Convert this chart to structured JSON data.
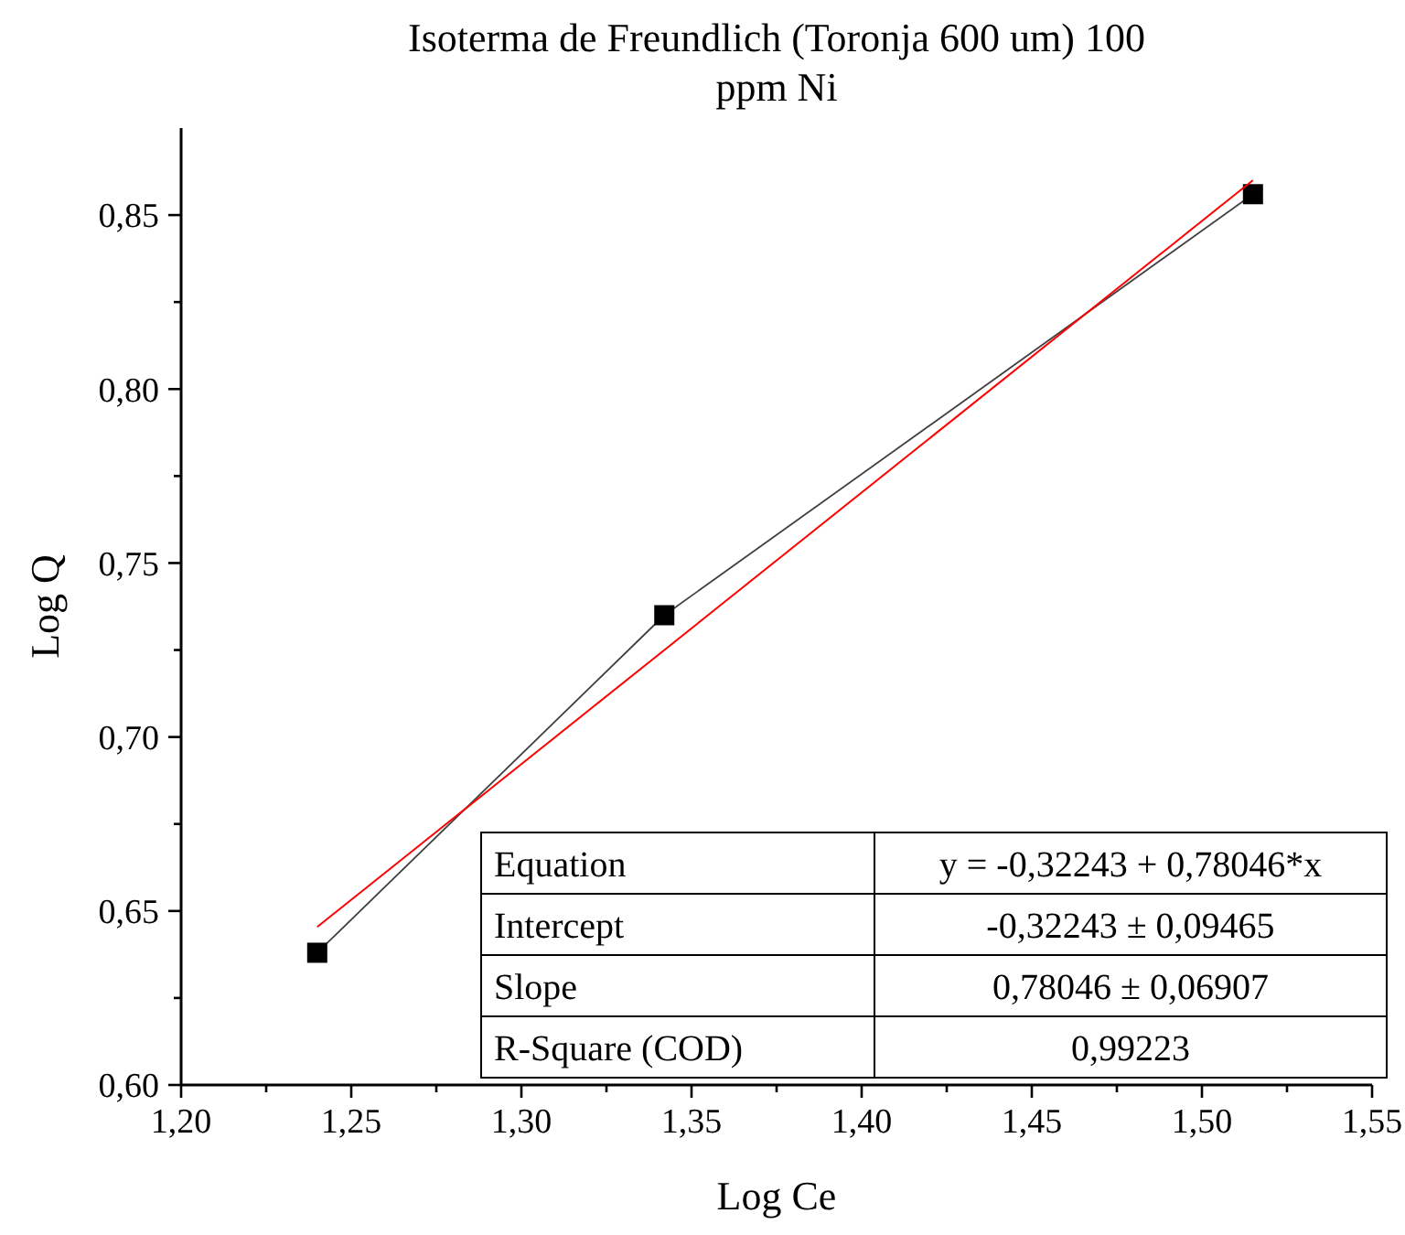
{
  "chart_data": {
    "type": "line",
    "title": "Isoterma de Freundlich (Toronja 600 um) 100 ppm Ni",
    "xlabel": "Log Ce",
    "ylabel": "Log Q",
    "series": [
      {
        "color": "#000000",
        "x": [
          1.24,
          1.342,
          1.515
        ],
        "values": [
          0.638,
          0.735,
          0.856
        ],
        "marker": "square"
      },
      {
        "color": "#ff0000",
        "x": [
          1.24,
          1.515
        ],
        "values": [
          0.6454,
          0.86
        ],
        "marker": "none"
      }
    ],
    "xlim": [
      1.2,
      1.55
    ],
    "xticks": [
      {
        "value": 1.2,
        "label": "1,20"
      },
      {
        "value": 1.225,
        "label": null
      },
      {
        "value": 1.25,
        "label": "1,25"
      },
      {
        "value": 1.275,
        "label": null
      },
      {
        "value": 1.3,
        "label": "1,30"
      },
      {
        "value": 1.325,
        "label": null
      },
      {
        "value": 1.35,
        "label": "1,35"
      },
      {
        "value": 1.375,
        "label": null
      },
      {
        "value": 1.4,
        "label": "1,40"
      },
      {
        "value": 1.425,
        "label": null
      },
      {
        "value": 1.45,
        "label": "1,45"
      },
      {
        "value": 1.475,
        "label": null
      },
      {
        "value": 1.5,
        "label": "1,50"
      },
      {
        "value": 1.525,
        "label": null
      },
      {
        "value": 1.55,
        "label": "1,55"
      }
    ],
    "ylim": [
      0.6,
      0.875
    ],
    "yticks": [
      {
        "value": 0.6,
        "label": "0,60"
      },
      {
        "value": 0.625,
        "label": null
      },
      {
        "value": 0.65,
        "label": "0,65"
      },
      {
        "value": 0.675,
        "label": null
      },
      {
        "value": 0.7,
        "label": "0,70"
      },
      {
        "value": 0.725,
        "label": null
      },
      {
        "value": 0.75,
        "label": "0,75"
      },
      {
        "value": 0.775,
        "label": null
      },
      {
        "value": 0.8,
        "label": "0,80"
      },
      {
        "value": 0.825,
        "label": null
      },
      {
        "value": 0.85,
        "label": "0,85"
      }
    ],
    "annotations": [
      "Equation",
      "y = -0,32243 + 0,78046*x",
      "Intercept",
      "-0,32243 ± 0,09465",
      "Slope",
      "0,78046 ± 0,06907",
      "R-Square (COD)",
      "0,99223"
    ],
    "grid": false
  }
}
